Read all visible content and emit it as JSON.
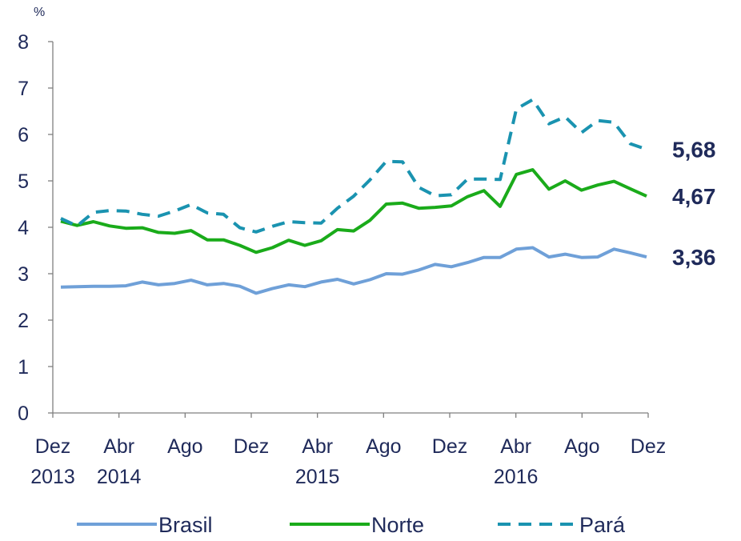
{
  "chart_data": {
    "type": "line",
    "y_label": "%",
    "categories": [
      "Dez\n2013",
      null,
      null,
      null,
      "Abr\n2014",
      null,
      null,
      null,
      "Ago",
      null,
      null,
      null,
      "Dez",
      null,
      null,
      null,
      "Abr\n2015",
      null,
      null,
      null,
      "Ago",
      null,
      null,
      null,
      "Dez",
      null,
      null,
      null,
      "Abr\n2016",
      null,
      null,
      null,
      "Ago",
      null,
      null,
      null,
      "Dez"
    ],
    "ylim": [
      0,
      8
    ],
    "yticks": [
      0,
      1,
      2,
      3,
      4,
      5,
      6,
      7,
      8
    ],
    "grid": false,
    "legend": "bottom",
    "series": [
      {
        "name": "Brasil",
        "color": "#6fa0d8",
        "line_style": "solid",
        "values": [
          2.71,
          2.72,
          2.73,
          2.73,
          2.74,
          2.82,
          2.76,
          2.79,
          2.86,
          2.76,
          2.79,
          2.73,
          2.58,
          2.68,
          2.76,
          2.72,
          2.82,
          2.88,
          2.78,
          2.87,
          3.0,
          2.99,
          3.08,
          3.2,
          3.15,
          3.24,
          3.35,
          3.35,
          3.53,
          3.56,
          3.36,
          3.42,
          3.35,
          3.36,
          3.53,
          3.45,
          3.36
        ],
        "value_labels": [
          null,
          null,
          null,
          null,
          null,
          null,
          null,
          null,
          null,
          null,
          null,
          null,
          null,
          null,
          null,
          null,
          null,
          null,
          null,
          null,
          null,
          null,
          null,
          null,
          null,
          null,
          null,
          null,
          null,
          null,
          null,
          null,
          null,
          null,
          null,
          null,
          "3,36"
        ]
      },
      {
        "name": "Norte",
        "color": "#1aab1a",
        "line_style": "solid",
        "values": [
          4.13,
          4.04,
          4.12,
          4.03,
          3.98,
          3.99,
          3.89,
          3.87,
          3.93,
          3.73,
          3.73,
          3.61,
          3.46,
          3.56,
          3.72,
          3.61,
          3.71,
          3.95,
          3.92,
          4.15,
          4.5,
          4.52,
          4.41,
          4.43,
          4.46,
          4.66,
          4.79,
          4.45,
          5.14,
          5.24,
          4.82,
          5.0,
          4.8,
          4.91,
          4.99,
          4.83,
          4.67
        ],
        "value_labels": [
          null,
          null,
          null,
          null,
          null,
          null,
          null,
          null,
          null,
          null,
          null,
          null,
          null,
          null,
          null,
          null,
          null,
          null,
          null,
          null,
          null,
          null,
          null,
          null,
          null,
          null,
          null,
          null,
          null,
          null,
          null,
          null,
          null,
          null,
          null,
          null,
          "4,67"
        ]
      },
      {
        "name": "Pará",
        "color": "#1a93b0",
        "line_style": "dashed",
        "values": [
          4.19,
          4.03,
          4.32,
          4.36,
          4.35,
          4.28,
          4.24,
          4.35,
          4.49,
          4.31,
          4.28,
          3.99,
          3.9,
          4.02,
          4.12,
          4.1,
          4.09,
          4.41,
          4.67,
          5.02,
          5.42,
          5.41,
          4.86,
          4.68,
          4.7,
          5.04,
          5.04,
          5.03,
          6.55,
          6.75,
          6.23,
          6.38,
          6.04,
          6.3,
          6.26,
          5.8,
          5.68
        ],
        "value_labels": [
          null,
          null,
          null,
          null,
          null,
          null,
          null,
          null,
          null,
          null,
          null,
          null,
          null,
          null,
          null,
          null,
          null,
          null,
          null,
          null,
          null,
          null,
          null,
          null,
          null,
          null,
          null,
          null,
          null,
          null,
          null,
          null,
          null,
          null,
          null,
          null,
          "5,68"
        ]
      }
    ]
  }
}
